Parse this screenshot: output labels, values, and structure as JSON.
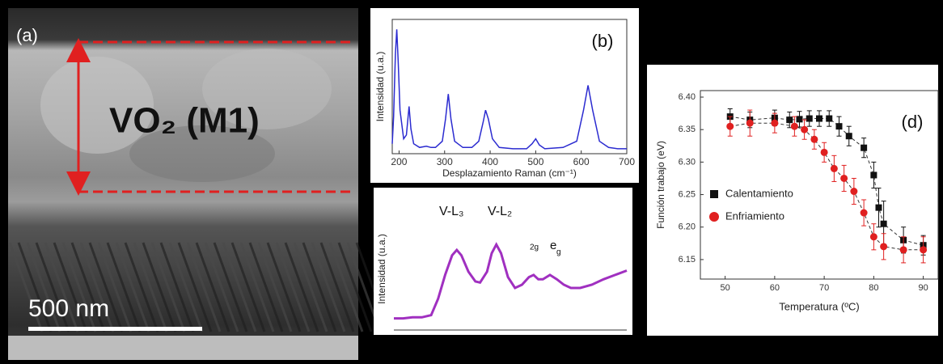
{
  "panel_a": {
    "label": "(a)",
    "annotation": "VO₂ (M1)",
    "scale_bar": "500 nm"
  },
  "chart_data": [
    {
      "type": "line",
      "label": "(b)",
      "ylabel": "Intensidad (u.a.)",
      "xlabel": "Desplazamiento Raman (cm⁻¹)",
      "x": [
        185,
        188,
        192,
        195,
        198,
        202,
        210,
        216,
        222,
        226,
        232,
        245,
        260,
        270,
        280,
        295,
        302,
        308,
        314,
        322,
        340,
        360,
        375,
        385,
        390,
        396,
        405,
        420,
        450,
        480,
        492,
        500,
        508,
        520,
        560,
        590,
        605,
        615,
        625,
        640,
        660,
        680,
        700
      ],
      "values": [
        0.08,
        0.3,
        0.8,
        1.0,
        0.75,
        0.35,
        0.12,
        0.15,
        0.38,
        0.2,
        0.08,
        0.05,
        0.06,
        0.05,
        0.05,
        0.1,
        0.28,
        0.48,
        0.28,
        0.1,
        0.05,
        0.05,
        0.1,
        0.26,
        0.35,
        0.28,
        0.12,
        0.05,
        0.04,
        0.04,
        0.08,
        0.12,
        0.07,
        0.04,
        0.05,
        0.1,
        0.35,
        0.55,
        0.35,
        0.1,
        0.05,
        0.04,
        0.04
      ],
      "color": "#2b2bd0",
      "xlim": [
        185,
        700
      ],
      "ylim": [
        0,
        1.08
      ],
      "xticks": [
        200,
        300,
        400,
        500,
        600,
        700
      ]
    },
    {
      "type": "line",
      "ylabel": "Intensidad (u.a.)",
      "annotations": [
        "V-L₃",
        "V-L₂",
        "2g",
        "e",
        "g"
      ],
      "x": [
        0,
        4,
        8,
        12,
        16,
        19,
        22,
        25,
        27,
        29,
        32,
        35,
        37,
        40,
        42,
        44,
        46,
        49,
        52,
        55,
        58,
        60,
        62,
        64,
        67,
        70,
        73,
        76,
        80,
        85,
        90,
        95,
        100
      ],
      "values": [
        0.02,
        0.02,
        0.03,
        0.03,
        0.05,
        0.2,
        0.42,
        0.6,
        0.65,
        0.6,
        0.45,
        0.36,
        0.35,
        0.45,
        0.62,
        0.7,
        0.62,
        0.4,
        0.3,
        0.33,
        0.4,
        0.42,
        0.38,
        0.38,
        0.42,
        0.38,
        0.33,
        0.3,
        0.3,
        0.33,
        0.38,
        0.42,
        0.46
      ],
      "color": "#a030c0",
      "xlim": [
        0,
        100
      ],
      "ylim": [
        -0.05,
        1
      ]
    },
    {
      "type": "scatter",
      "label": "(d)",
      "xlabel": "Temperatura  (ºC)",
      "ylabel": "Función trabajo (eV)",
      "xlim": [
        45,
        93
      ],
      "ylim": [
        6.12,
        6.41
      ],
      "xticks": [
        50,
        60,
        70,
        80,
        90
      ],
      "yticks": [
        6.15,
        {
          "value": 6.2,
          "label": "6.20"
        },
        6.25,
        {
          "value": 6.3,
          "label": "6.30"
        },
        6.35,
        {
          "value": 6.4,
          "label": "6.40"
        }
      ],
      "series": [
        {
          "name": "Calentamiento",
          "color": "#111111",
          "marker": "square",
          "x": [
            51,
            55,
            60,
            63,
            65,
            67,
            69,
            71,
            73,
            75,
            78,
            80,
            81,
            82,
            86,
            90
          ],
          "values": [
            6.37,
            6.365,
            6.368,
            6.365,
            6.366,
            6.367,
            6.367,
            6.367,
            6.355,
            6.34,
            6.322,
            6.28,
            6.23,
            6.205,
            6.18,
            6.172
          ],
          "errors": [
            0.012,
            0.012,
            0.012,
            0.012,
            0.012,
            0.012,
            0.012,
            0.012,
            0.015,
            0.015,
            0.015,
            0.02,
            0.03,
            0.035,
            0.02,
            0.015
          ]
        },
        {
          "name": "Enfriamiento",
          "color": "#e02020",
          "marker": "circle",
          "x": [
            51,
            55,
            60,
            64,
            66,
            68,
            70,
            72,
            74,
            76,
            78,
            80,
            82,
            86,
            90
          ],
          "values": [
            6.355,
            6.36,
            6.36,
            6.355,
            6.35,
            6.335,
            6.315,
            6.29,
            6.275,
            6.255,
            6.222,
            6.185,
            6.17,
            6.165,
            6.165
          ],
          "errors": [
            0.015,
            0.02,
            0.015,
            0.015,
            0.015,
            0.015,
            0.015,
            0.02,
            0.02,
            0.02,
            0.02,
            0.02,
            0.02,
            0.02,
            0.02
          ]
        }
      ]
    }
  ]
}
